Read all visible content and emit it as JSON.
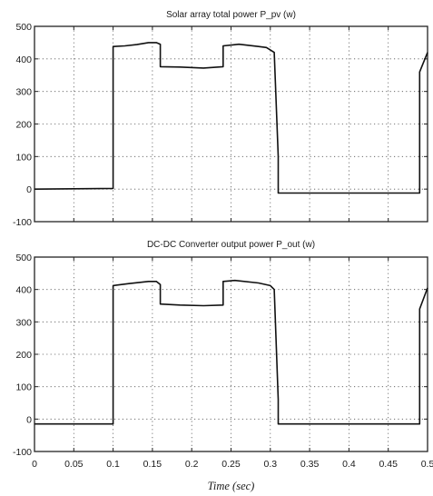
{
  "chart_data": [
    {
      "type": "line",
      "title": "Solar array total power P_pv (w)",
      "xlabel": "",
      "ylabel": "",
      "xlim": [
        0,
        0.5
      ],
      "ylim": [
        -100,
        500
      ],
      "grid": true,
      "x_ticks": [
        0,
        0.05,
        0.1,
        0.15,
        0.2,
        0.25,
        0.3,
        0.35,
        0.4,
        0.45,
        0.5
      ],
      "y_ticks": [
        -100,
        0,
        100,
        200,
        300,
        400,
        500
      ],
      "y_tick_labels": [
        "-100",
        "0",
        "100",
        "200",
        "300",
        "400",
        "500"
      ],
      "series": [
        {
          "x": [
            0,
            0.1,
            0.1,
            0.115,
            0.13,
            0.145,
            0.155,
            0.16,
            0.16,
            0.185,
            0.215,
            0.24,
            0.24,
            0.26,
            0.285,
            0.295,
            0.305,
            0.31,
            0.31,
            0.49,
            0.49,
            0.5
          ],
          "y": [
            0,
            2,
            438,
            440,
            444,
            450,
            450,
            445,
            376,
            375,
            372,
            376,
            440,
            445,
            438,
            435,
            420,
            100,
            -12,
            -12,
            360,
            420
          ]
        }
      ]
    },
    {
      "type": "line",
      "title": "DC-DC Converter output power P_out (w)",
      "xlabel": "Time (sec)",
      "ylabel": "",
      "xlim": [
        0,
        0.5
      ],
      "ylim": [
        -100,
        500
      ],
      "grid": true,
      "x_ticks": [
        0,
        0.05,
        0.1,
        0.15,
        0.2,
        0.25,
        0.3,
        0.35,
        0.4,
        0.45,
        0.5
      ],
      "x_tick_labels": [
        "0",
        "0.05",
        "0.1",
        "0.15",
        "0.2",
        "0.25",
        "0.3",
        "0.35",
        "0.4",
        "0.45",
        "0.5"
      ],
      "y_ticks": [
        -100,
        0,
        100,
        200,
        300,
        400,
        500
      ],
      "y_tick_labels": [
        "-100",
        "0",
        "100",
        "200",
        "300",
        "400",
        "500"
      ],
      "series": [
        {
          "x": [
            0,
            0.1,
            0.1,
            0.12,
            0.145,
            0.155,
            0.16,
            0.16,
            0.185,
            0.215,
            0.24,
            0.24,
            0.255,
            0.285,
            0.3,
            0.305,
            0.31,
            0.31,
            0.49,
            0.49,
            0.5
          ],
          "y": [
            -15,
            -15,
            412,
            418,
            425,
            425,
            415,
            355,
            352,
            350,
            352,
            425,
            428,
            420,
            412,
            400,
            60,
            -15,
            -15,
            340,
            405
          ]
        }
      ]
    }
  ]
}
